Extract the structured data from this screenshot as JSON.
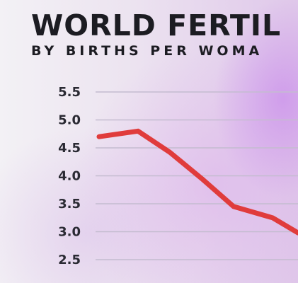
{
  "header": {
    "title": "WORLD FERTIL",
    "subtitle": "BY BIRTHS PER WOMA"
  },
  "colors": {
    "line": "#e03c3c",
    "grid": "#c4bcd0",
    "text": "#1c1c22"
  },
  "chart_data": {
    "type": "line",
    "title": "WORLD FERTIL",
    "subtitle": "BY BIRTHS PER WOMA",
    "xlabel": "",
    "ylabel": "",
    "y_ticks": [
      "5.5",
      "5.0",
      "4.5",
      "4.0",
      "3.5",
      "3.0",
      "2.5"
    ],
    "ylim": [
      2.3,
      5.5
    ],
    "grid": true,
    "series": [
      {
        "values": [
          4.7,
          4.8,
          4.42,
          3.95,
          3.45,
          3.25,
          2.98
        ]
      }
    ]
  }
}
